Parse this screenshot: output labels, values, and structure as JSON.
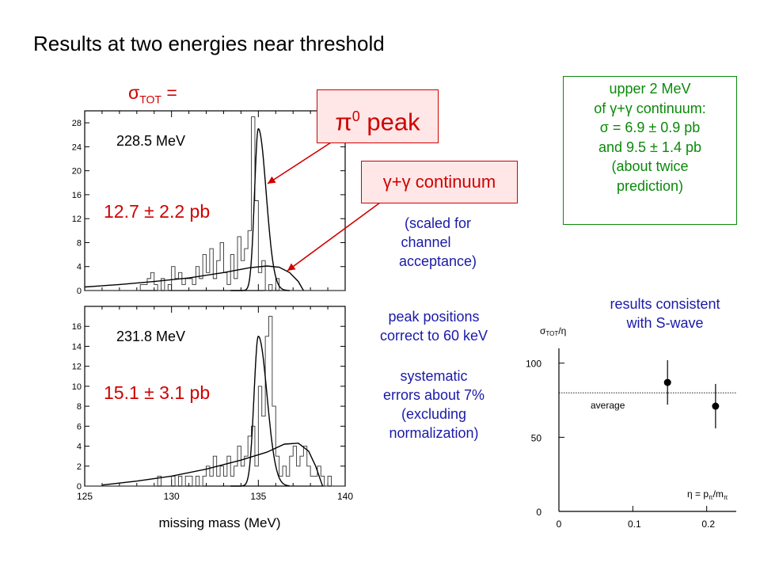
{
  "page": {
    "title": "Results at two energies near threshold",
    "sigma_symbol": "σ",
    "sigma_sub": "TOT",
    "sigma_eq": " =",
    "pi0_label": "π",
    "pi0_sup": "0",
    "pi0_suffix": " peak",
    "gg_label": "γ+γ continuum",
    "result_1": "12.7 ± 2.2 pb",
    "result_2": "15.1 ± 3.1 pb",
    "scaled_note": [
      "(scaled for",
      "channel",
      "acceptance)"
    ],
    "peak_note": [
      "peak positions",
      "correct to 60 keV"
    ],
    "sys_note": [
      "systematic",
      "errors about 7%",
      "(excluding",
      "normalization)"
    ],
    "green_note": [
      "upper 2 MeV",
      "of γ+γ continuum:",
      "σ = 6.9 ± 0.9 pb",
      "and 9.5 ± 1.4 pb",
      "(about twice",
      "prediction)"
    ],
    "swave_note": [
      "results consistent",
      "with S-wave"
    ]
  },
  "colors": {
    "red": "#d00000",
    "blue": "#1a1aa8",
    "green": "#0a8a0a",
    "pink_bg": "#ffe7e7"
  },
  "chart_data": [
    {
      "type": "histogram",
      "energy_label": "228.5 MeV",
      "x_range": [
        125,
        140
      ],
      "y_range": [
        0,
        30
      ],
      "x_ticks": [
        125,
        130,
        135,
        140
      ],
      "y_ticks": [
        0,
        4,
        8,
        12,
        16,
        20,
        24,
        28
      ],
      "bin_width": 0.2,
      "x_start": 125,
      "counts": [
        0,
        0,
        0,
        0,
        0,
        0,
        0,
        0,
        0,
        0,
        0,
        0,
        0,
        0,
        0,
        0,
        1,
        1,
        2,
        3,
        1,
        0,
        2,
        0,
        1,
        4,
        2,
        3,
        1,
        2,
        2,
        1,
        4,
        2,
        6,
        3,
        7,
        2,
        5,
        8,
        3,
        1,
        6,
        2,
        9,
        5,
        7,
        10,
        29,
        15,
        3,
        5,
        0,
        1,
        0,
        2,
        0,
        0,
        0,
        0,
        0,
        0,
        0,
        0,
        0,
        0,
        0,
        0,
        0,
        0,
        0,
        0,
        0,
        0,
        0
      ],
      "fit_peak": {
        "center": 135.0,
        "amplitude": 27,
        "sigma": 0.22,
        "tail": 0.45
      },
      "fit_continuum": [
        [
          125,
          0.6
        ],
        [
          127,
          1.0
        ],
        [
          129,
          1.5
        ],
        [
          131,
          2.1
        ],
        [
          133,
          3.0
        ],
        [
          134.5,
          3.8
        ],
        [
          135.5,
          4.1
        ],
        [
          136.2,
          3.9
        ],
        [
          136.8,
          3.0
        ],
        [
          137.3,
          1.5
        ],
        [
          137.6,
          0
        ]
      ],
      "axis_xlabel": ""
    },
    {
      "type": "histogram",
      "energy_label": "231.8 MeV",
      "x_range": [
        125,
        140
      ],
      "y_range": [
        0,
        18
      ],
      "x_ticks": [
        125,
        130,
        135,
        140
      ],
      "y_ticks": [
        0,
        2,
        4,
        6,
        8,
        10,
        12,
        14,
        16
      ],
      "bin_width": 0.2,
      "x_start": 125,
      "counts": [
        0,
        0,
        0,
        0,
        0,
        0,
        0,
        0,
        0,
        0,
        0,
        0,
        0,
        0,
        0,
        0,
        0,
        0,
        0,
        0,
        0,
        1,
        0,
        0,
        0,
        1,
        0,
        1,
        0,
        1,
        1,
        0,
        1,
        0,
        1,
        2,
        1,
        3,
        1,
        2,
        1,
        3,
        1,
        2,
        4,
        2,
        3,
        5,
        6,
        2,
        10,
        7,
        15,
        17,
        8,
        3,
        1,
        2,
        1,
        3,
        4,
        2,
        3,
        4,
        2,
        1,
        1,
        2,
        1,
        0,
        1,
        0,
        0,
        0,
        0
      ],
      "fit_peak": {
        "center": 135.0,
        "amplitude": 15,
        "sigma": 0.25,
        "tail": 0.5
      },
      "fit_continuum": [
        [
          126,
          0.1
        ],
        [
          128,
          0.5
        ],
        [
          130,
          1.0
        ],
        [
          132,
          1.7
        ],
        [
          134,
          2.6
        ],
        [
          135.5,
          3.4
        ],
        [
          136.5,
          4.2
        ],
        [
          137.3,
          4.3
        ],
        [
          137.9,
          3.5
        ],
        [
          138.3,
          2.0
        ],
        [
          138.7,
          0
        ]
      ],
      "axis_xlabel": "missing mass  (MeV)"
    },
    {
      "type": "scatter",
      "title": "",
      "ylabel_base": "σ",
      "ylabel_sub": "TOT",
      "ylabel_suffix": "/η",
      "eta_pre": "η = p",
      "eta_sub1": "π",
      "eta_mid": "/m",
      "eta_sub2": "π",
      "y_ticks": [
        0,
        50,
        100
      ],
      "x_ticks": [
        "0",
        "0.1",
        "0.2"
      ],
      "x_tick_values": [
        0,
        0.1,
        0.2
      ],
      "xlim": [
        0,
        0.24
      ],
      "ylim": [
        0,
        110
      ],
      "points": [
        {
          "x": 0.147,
          "y": 87,
          "err": 15
        },
        {
          "x": 0.212,
          "y": 71,
          "err": 15
        }
      ],
      "average": 80,
      "average_label": "average"
    }
  ]
}
